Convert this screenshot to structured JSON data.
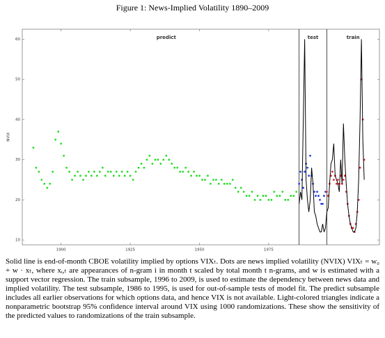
{
  "figure_title": "Figure 1: News-Implied Volatility 1890–2009",
  "chart_data": {
    "type": "scatter",
    "y_label": "NVIX",
    "xlim": [
      1886,
      2015
    ],
    "ylim": [
      8.8,
      62.5
    ],
    "xticks": [
      1900,
      1925,
      1950,
      1975
    ],
    "yticks": [
      10,
      20,
      30,
      40,
      50,
      60
    ],
    "reference_lines": [
      1986,
      1996
    ],
    "series": [
      {
        "name": "predict",
        "color": "#22dd22",
        "x": [
          1890,
          1891,
          1892,
          1893,
          1894,
          1895,
          1896,
          1897,
          1898,
          1899,
          1900,
          1901,
          1902,
          1903,
          1904,
          1905,
          1906,
          1907,
          1908,
          1909,
          1910,
          1911,
          1912,
          1913,
          1914,
          1915,
          1916,
          1917,
          1918,
          1919,
          1920,
          1921,
          1922,
          1923,
          1924,
          1925,
          1926,
          1927,
          1928,
          1929,
          1930,
          1931,
          1932,
          1933,
          1934,
          1935,
          1936,
          1937,
          1938,
          1939,
          1940,
          1941,
          1942,
          1943,
          1944,
          1945,
          1946,
          1947,
          1948,
          1949,
          1950,
          1951,
          1952,
          1953,
          1954,
          1955,
          1956,
          1957,
          1958,
          1959,
          1960,
          1961,
          1962,
          1963,
          1964,
          1965,
          1966,
          1967,
          1968,
          1969,
          1970,
          1971,
          1972,
          1973,
          1974,
          1975,
          1976,
          1977,
          1978,
          1979,
          1980,
          1981,
          1982,
          1983,
          1984,
          1985
        ],
        "values": [
          33,
          28,
          27,
          25,
          24,
          23,
          24,
          27,
          35,
          37,
          34,
          31,
          28,
          27,
          25,
          26,
          27,
          26,
          25,
          26,
          27,
          26,
          27,
          26,
          27,
          28,
          26,
          27,
          27,
          26,
          27,
          26,
          27,
          26,
          27,
          26,
          25,
          27,
          28,
          29,
          28,
          30,
          31,
          29,
          30,
          30,
          29,
          30,
          31,
          30,
          29,
          28,
          28,
          27,
          27,
          28,
          27,
          26,
          27,
          26,
          26,
          25,
          25,
          26,
          24,
          25,
          25,
          24,
          25,
          24,
          24,
          24,
          25,
          23,
          22,
          23,
          22,
          21,
          21,
          22,
          20,
          21,
          20,
          21,
          21,
          20,
          20,
          22,
          21,
          21,
          22,
          20,
          20,
          21,
          21,
          22
        ]
      },
      {
        "name": "test",
        "color": "#1f3fe0",
        "x": [
          1986,
          1986.5,
          1987,
          1987.5,
          1988,
          1988.5,
          1989,
          1989.5,
          1990,
          1990.5,
          1991,
          1991.5,
          1992,
          1992.5,
          1993,
          1993.5,
          1994,
          1994.5,
          1995,
          1995.5
        ],
        "values": [
          24,
          27,
          25,
          23,
          27,
          29,
          28,
          26,
          31,
          26,
          24,
          22,
          21,
          22,
          21,
          20,
          19,
          19,
          21,
          22
        ]
      },
      {
        "name": "train",
        "color": "#e0202a",
        "x": [
          1996,
          1996.5,
          1997,
          1997.5,
          1998,
          1998.5,
          1999,
          1999.5,
          2000,
          2000.5,
          2001,
          2001.5,
          2002,
          2002.5,
          2003,
          2003.5,
          2004,
          2004.5,
          2005,
          2005.5,
          2006,
          2006.5,
          2007,
          2007.5,
          2008,
          2008.5,
          2009,
          2009.5
        ],
        "values": [
          22,
          21,
          24,
          26,
          27,
          25,
          26,
          24,
          25,
          24,
          26,
          24,
          25,
          26,
          22,
          19,
          16,
          14,
          13,
          13,
          12,
          14,
          17,
          20,
          28,
          50,
          40,
          30
        ]
      }
    ],
    "line": {
      "color": "#000000",
      "x": [
        1986,
        1986.5,
        1987,
        1987.5,
        1988,
        1988.5,
        1989,
        1989.5,
        1990,
        1990.5,
        1991,
        1991.5,
        1992,
        1992.5,
        1993,
        1993.5,
        1994,
        1994.5,
        1995,
        1995.5,
        1996,
        1996.5,
        1997,
        1997.5,
        1998,
        1998.5,
        1999,
        1999.5,
        2000,
        2000.5,
        2001,
        2001.5,
        2002,
        2002.5,
        2003,
        2003.5,
        2004,
        2004.5,
        2005,
        2005.5,
        2006,
        2006.5,
        2007,
        2007.5,
        2008,
        2008.5,
        2009,
        2009.5
      ],
      "values": [
        19,
        22,
        20,
        40,
        60,
        25,
        20,
        17,
        20,
        28,
        24,
        17,
        16,
        14,
        13,
        12,
        12,
        14,
        12,
        13,
        17,
        18,
        24,
        29,
        30,
        34,
        26,
        25,
        24,
        22,
        30,
        24,
        39,
        30,
        24,
        19,
        16,
        14,
        13,
        12,
        12,
        13,
        17,
        25,
        40,
        60,
        35,
        25
      ]
    }
  },
  "caption": "Solid line is end-of-month CBOE volatility implied by options VIXₜ. Dots are news implied volatility (NVIX) VIXₜ = w₀ + w · xₜ, where xᵢ,ₜ are appearances of n-gram i in month t scaled by total month t n-grams, and w is estimated with a support vector regression. The train subsample, 1996 to 2009, is used to estimate the dependency between news data and implied volatility. The test subsample, 1986 to 1995, is used for out-of-sample tests of model fit. The predict subsample includes all earlier observations for which options data, and hence VIX is not available. Light-colored triangles indicate a nonparametric bootstrap 95% confidence interval around VIX using 1000 randomizations. These show the sensitivity of the predicted values to randomizations of the train subsample."
}
